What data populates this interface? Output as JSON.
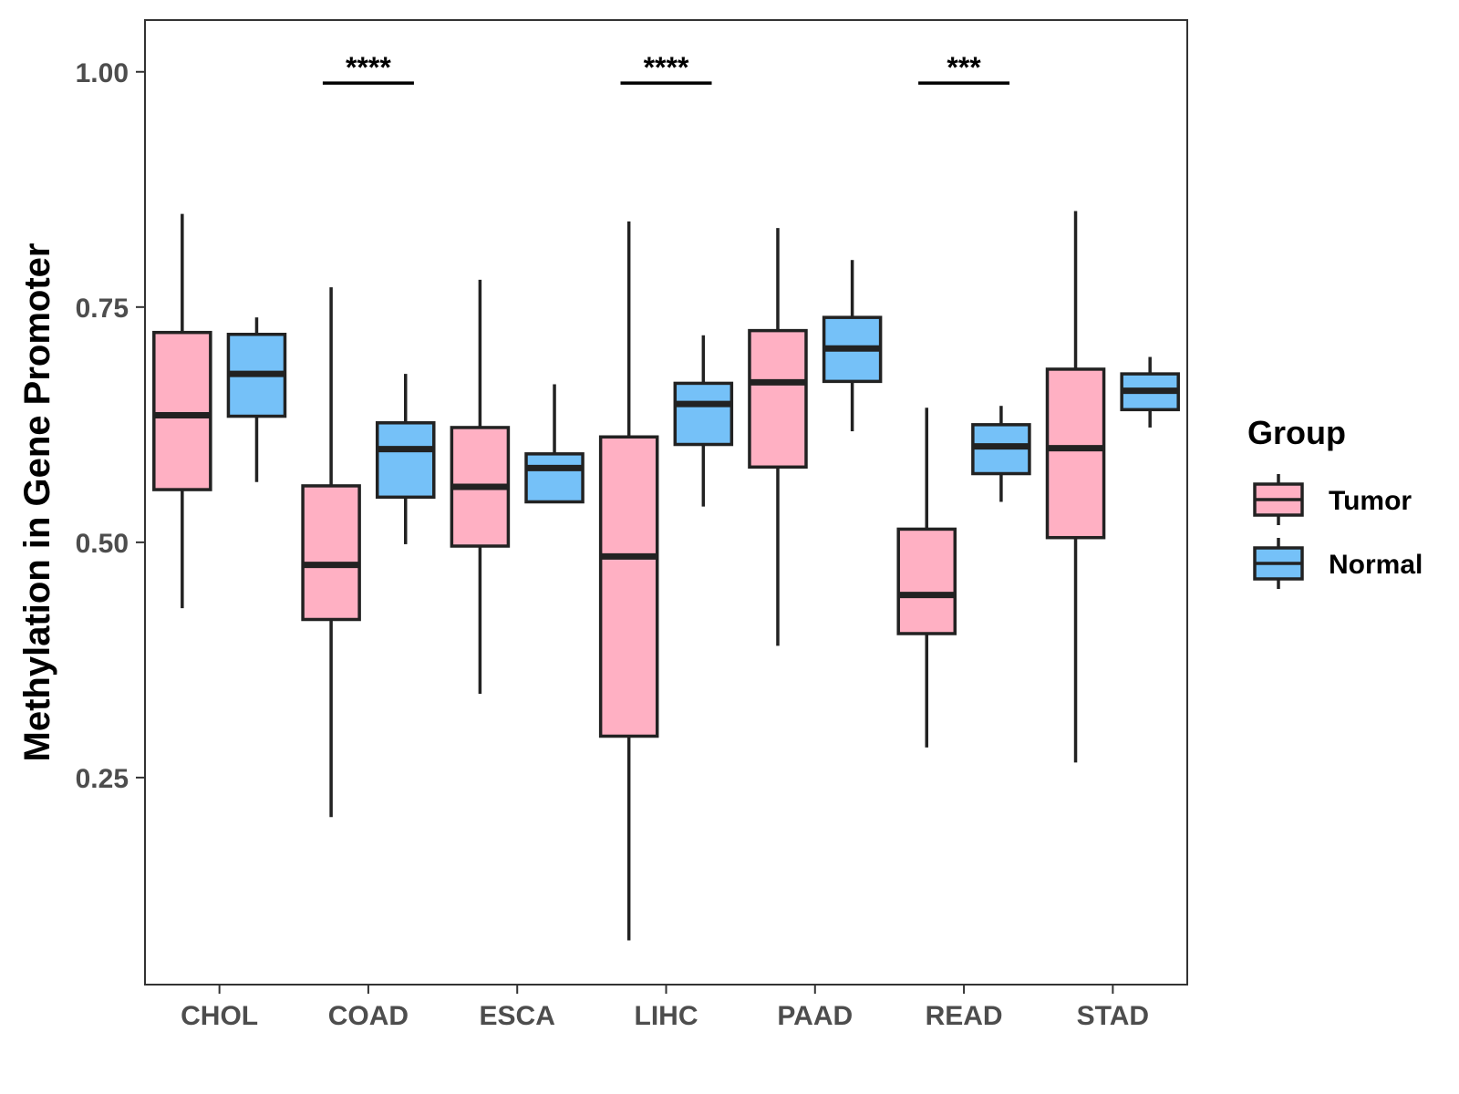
{
  "chart_data": {
    "type": "boxplot",
    "title": "",
    "xlabel": "",
    "ylabel": "Methylation in Gene Promoter",
    "ylim": [
      0.03,
      1.055
    ],
    "yticks": [
      0.25,
      0.5,
      0.75,
      1.0
    ],
    "ytick_labels": [
      "0.25",
      "0.50",
      "0.75",
      "1.00"
    ],
    "grid": false,
    "categories": [
      "CHOL",
      "COAD",
      "ESCA",
      "LIHC",
      "PAAD",
      "READ",
      "STAD"
    ],
    "legend": {
      "title": "Group",
      "position": "right",
      "entries": [
        "Tumor",
        "Normal"
      ]
    },
    "series": [
      {
        "name": "Tumor",
        "color": "#FFB0C3",
        "boxes": [
          {
            "min": 0.43,
            "q1": 0.556,
            "median": 0.635,
            "q3": 0.723,
            "max": 0.849
          },
          {
            "min": 0.208,
            "q1": 0.418,
            "median": 0.476,
            "q3": 0.56,
            "max": 0.771
          },
          {
            "min": 0.339,
            "q1": 0.496,
            "median": 0.559,
            "q3": 0.622,
            "max": 0.779
          },
          {
            "min": 0.077,
            "q1": 0.294,
            "median": 0.485,
            "q3": 0.612,
            "max": 0.841
          },
          {
            "min": 0.39,
            "q1": 0.58,
            "median": 0.67,
            "q3": 0.725,
            "max": 0.834
          },
          {
            "min": 0.282,
            "q1": 0.403,
            "median": 0.444,
            "q3": 0.514,
            "max": 0.643
          },
          {
            "min": 0.266,
            "q1": 0.505,
            "median": 0.6,
            "q3": 0.684,
            "max": 0.852
          }
        ]
      },
      {
        "name": "Normal",
        "color": "#75C1F8",
        "boxes": [
          {
            "min": 0.564,
            "q1": 0.634,
            "median": 0.679,
            "q3": 0.721,
            "max": 0.739
          },
          {
            "min": 0.498,
            "q1": 0.548,
            "median": 0.599,
            "q3": 0.627,
            "max": 0.679
          },
          {
            "min": 0.543,
            "q1": 0.543,
            "median": 0.579,
            "q3": 0.594,
            "max": 0.668
          },
          {
            "min": 0.538,
            "q1": 0.604,
            "median": 0.647,
            "q3": 0.669,
            "max": 0.72
          },
          {
            "min": 0.618,
            "q1": 0.671,
            "median": 0.706,
            "q3": 0.739,
            "max": 0.8
          },
          {
            "min": 0.543,
            "q1": 0.573,
            "median": 0.602,
            "q3": 0.625,
            "max": 0.645
          },
          {
            "min": 0.622,
            "q1": 0.641,
            "median": 0.661,
            "q3": 0.679,
            "max": 0.697
          }
        ]
      }
    ],
    "annotations": [
      {
        "category": "COAD",
        "label": "****",
        "y": 0.988
      },
      {
        "category": "LIHC",
        "label": "****",
        "y": 0.988
      },
      {
        "category": "READ",
        "label": "***",
        "y": 0.988
      }
    ]
  }
}
